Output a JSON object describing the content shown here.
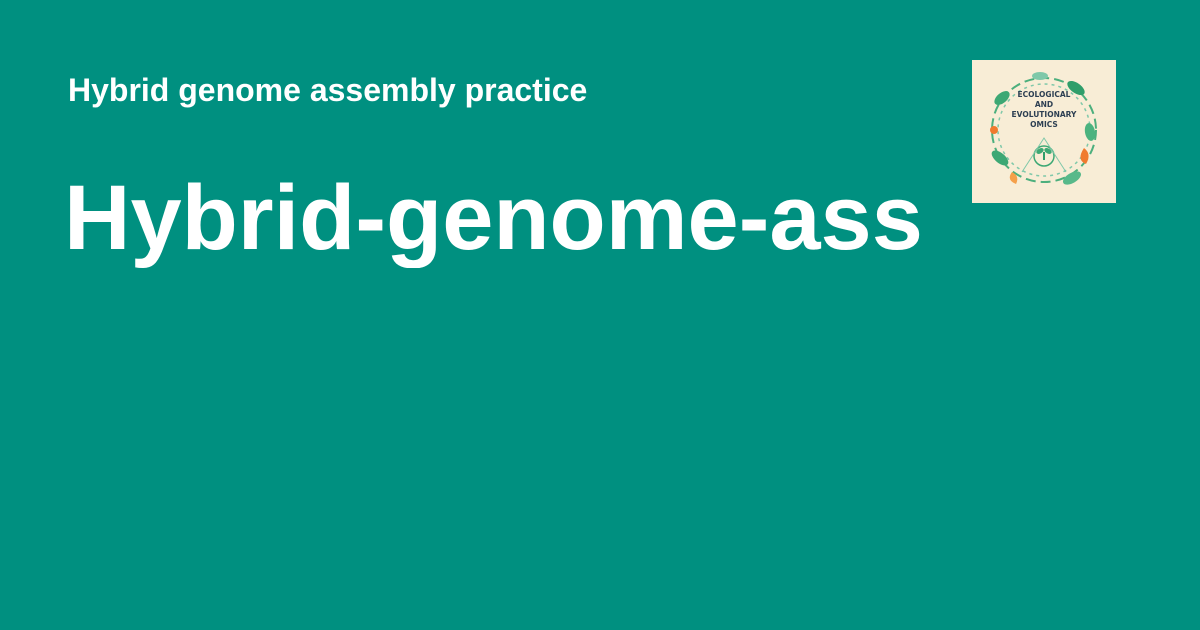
{
  "header": {
    "subtitle": "Hybrid genome assembly practice",
    "title": "Hybrid-genome-ass"
  },
  "logo": {
    "lines": [
      "ECOLOGICAL",
      "AND",
      "EVOLUTIONARY",
      "OMICS"
    ]
  },
  "colors": {
    "background": "#009080",
    "text": "#ffffff",
    "logo_background": "#f8edd6",
    "logo_text": "#2d3f52",
    "logo_leaf": "#4caf7d",
    "logo_accent": "#f07a2e"
  }
}
